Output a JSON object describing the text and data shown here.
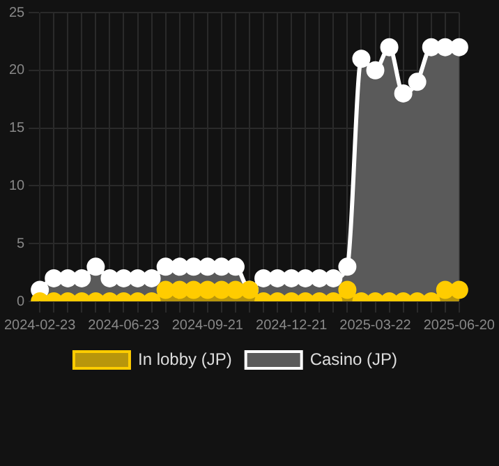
{
  "chart_data": {
    "type": "area",
    "categories": [
      "2024-02-23",
      null,
      null,
      null,
      null,
      null,
      "2024-06-23",
      null,
      null,
      null,
      null,
      null,
      "2024-09-21",
      null,
      null,
      null,
      null,
      null,
      "2024-12-21",
      null,
      null,
      null,
      null,
      null,
      "2025-03-22",
      null,
      null,
      null,
      null,
      null,
      "2025-06-20"
    ],
    "series": [
      {
        "name": "In lobby (JP)",
        "color": "#ffcc00",
        "values": [
          0,
          0,
          0,
          0,
          0,
          0,
          0,
          0,
          0,
          1,
          1,
          1,
          1,
          1,
          1,
          1,
          0,
          0,
          0,
          0,
          0,
          0,
          1,
          0,
          0,
          0,
          0,
          0,
          0,
          1,
          1
        ]
      },
      {
        "name": "Casino (JP)",
        "color": "#ffffff",
        "values": [
          1,
          2,
          2,
          2,
          3,
          2,
          2,
          2,
          2,
          3,
          3,
          3,
          3,
          3,
          3,
          1,
          2,
          2,
          2,
          2,
          2,
          2,
          3,
          21,
          20,
          22,
          18,
          19,
          22,
          22,
          22
        ]
      }
    ],
    "ylim": [
      0,
      25
    ],
    "yticks": [
      0,
      5,
      10,
      15,
      20,
      25
    ],
    "grid": true,
    "legend": "bottom",
    "marker": "circle"
  }
}
